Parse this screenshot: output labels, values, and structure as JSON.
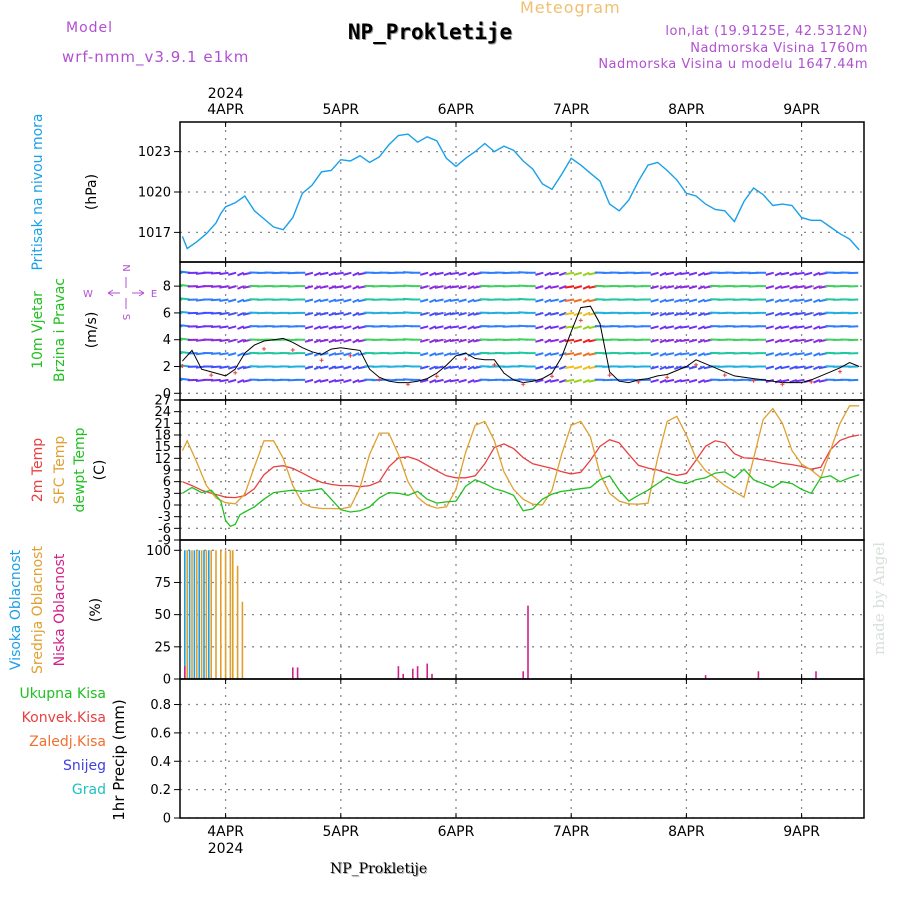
{
  "header": {
    "title": "NP_Prokletije",
    "subtitle": "Meteogram",
    "model_label": "Model",
    "model_name": "wrf-nmm_v3.9.1 e1km",
    "coords": "lon,lat (19.9125E, 42.5312N)",
    "elevation": "Nadmorska Visina 1760m",
    "model_elevation": "Nadmorska Visina u modelu 1647.44m",
    "footer": "NP_Prokletije",
    "credit": "made by Angel"
  },
  "axis_time": {
    "year": "2024",
    "days": [
      "4APR",
      "5APR",
      "6APR",
      "7APR",
      "8APR",
      "9APR"
    ],
    "range_hours": [
      -9.5,
      133
    ]
  },
  "colors": {
    "pressure": "#1aa0e8",
    "t2m": "#e84040",
    "sfc": "#e0a030",
    "dewpt": "#20c020",
    "high_cloud": "#1aa0e8",
    "mid_cloud": "#e0a030",
    "low_cloud": "#d0208a",
    "grid": "#888888"
  },
  "chart_data": [
    {
      "type": "line",
      "name": "pressure",
      "ylabel": "Pritisak na nivou mora",
      "unit": "(hPa)",
      "ylim": [
        1014.8,
        1025.2
      ],
      "yticks": [
        1017,
        1020,
        1023
      ],
      "series": [
        {
          "name": "Pritisak na nivou mora",
          "x": [
            -9,
            -8,
            -6,
            -4,
            -2,
            -1,
            0,
            2,
            4,
            6,
            8,
            10,
            12,
            14,
            16,
            18,
            20,
            22,
            24,
            26,
            28,
            30,
            32,
            34,
            36,
            38,
            40,
            42,
            44,
            46,
            48,
            50,
            52,
            54,
            56,
            58,
            60,
            62,
            64,
            66,
            68,
            70,
            72,
            74,
            76,
            78,
            80,
            82,
            84,
            86,
            88,
            90,
            92,
            94,
            96,
            98,
            100,
            102,
            104,
            106,
            108,
            110,
            112,
            114,
            116,
            118,
            120,
            122,
            124,
            126,
            128,
            130,
            132
          ],
          "y": [
            1016.7,
            1015.8,
            1016.3,
            1016.9,
            1017.7,
            1018.4,
            1018.9,
            1019.2,
            1019.7,
            1018.6,
            1018.0,
            1017.4,
            1017.2,
            1018.1,
            1019.9,
            1020.5,
            1021.5,
            1021.6,
            1022.4,
            1022.3,
            1022.7,
            1022.2,
            1022.6,
            1023.5,
            1024.2,
            1024.3,
            1023.7,
            1024.1,
            1023.8,
            1022.5,
            1021.9,
            1022.5,
            1023.0,
            1023.6,
            1023.0,
            1023.4,
            1023.1,
            1022.3,
            1021.7,
            1020.6,
            1020.2,
            1021.3,
            1022.5,
            1022.0,
            1021.4,
            1020.8,
            1019.1,
            1018.6,
            1019.4,
            1020.8,
            1022.0,
            1022.2,
            1021.6,
            1020.9,
            1019.9,
            1019.7,
            1019.1,
            1018.7,
            1018.6,
            1017.8,
            1019.3,
            1020.3,
            1019.8,
            1019.0,
            1019.1,
            1019.0,
            1018.1,
            1017.9,
            1017.9,
            1017.4,
            1016.9,
            1016.5,
            1015.7
          ]
        }
      ]
    },
    {
      "type": "line",
      "name": "wind",
      "ylabel": "10m Vjetar Brzina i Pravac",
      "unit": "(m/s)",
      "compass": {
        "n": "N",
        "s": "S",
        "e": "E",
        "w": "W"
      },
      "ylim": [
        -0.5,
        9.8
      ],
      "yticks": [
        0,
        2,
        4,
        6,
        8
      ],
      "series": [
        {
          "name": "Brzina",
          "x": [
            -9,
            -7,
            -5,
            -3,
            -1,
            0,
            2,
            4,
            6,
            8,
            10,
            12,
            14,
            16,
            18,
            20,
            22,
            24,
            26,
            28,
            30,
            32,
            34,
            36,
            38,
            40,
            42,
            44,
            46,
            48,
            50,
            52,
            54,
            56,
            58,
            60,
            62,
            64,
            66,
            68,
            70,
            72,
            74,
            76,
            78,
            80,
            82,
            84,
            86,
            88,
            90,
            92,
            94,
            96,
            98,
            100,
            102,
            104,
            106,
            108,
            110,
            112,
            114,
            116,
            118,
            120,
            122,
            124,
            126,
            128,
            130,
            132
          ],
          "y": [
            2.4,
            3.2,
            1.8,
            1.6,
            1.4,
            1.3,
            1.8,
            3.0,
            3.6,
            3.9,
            4.0,
            4.1,
            3.8,
            3.4,
            3.1,
            2.9,
            3.3,
            3.4,
            3.3,
            3.2,
            1.8,
            1.2,
            0.9,
            0.8,
            0.8,
            0.9,
            1.1,
            1.5,
            2.1,
            2.8,
            3.0,
            2.6,
            2.5,
            2.5,
            1.5,
            1.0,
            0.8,
            0.9,
            1.1,
            1.5,
            2.7,
            4.6,
            6.4,
            6.5,
            5.2,
            1.6,
            0.9,
            0.8,
            1.0,
            1.1,
            1.3,
            1.4,
            1.7,
            2.0,
            2.5,
            2.2,
            1.9,
            1.6,
            1.3,
            1.2,
            1.1,
            1.0,
            0.9,
            0.8,
            0.8,
            0.8,
            1.0,
            1.3,
            1.6,
            1.9,
            2.3,
            2.0
          ]
        }
      ]
    },
    {
      "type": "line",
      "name": "temperature",
      "ylabel": [
        "2m Temp",
        "SFC Temp",
        "dewpt Temp"
      ],
      "unit": "(C)",
      "ylim": [
        -9,
        27
      ],
      "yticks": [
        -9,
        -6,
        -3,
        0,
        3,
        6,
        9,
        12,
        15,
        18,
        21,
        24,
        27
      ],
      "series": [
        {
          "name": "2m Temp",
          "x": [
            -9,
            -7,
            -5,
            -3,
            -1,
            0,
            2,
            4,
            6,
            8,
            10,
            12,
            14,
            16,
            18,
            20,
            22,
            24,
            26,
            28,
            30,
            32,
            34,
            36,
            38,
            40,
            42,
            44,
            46,
            48,
            50,
            52,
            54,
            56,
            58,
            60,
            62,
            64,
            66,
            68,
            70,
            72,
            74,
            76,
            78,
            80,
            82,
            84,
            86,
            88,
            90,
            92,
            94,
            96,
            98,
            100,
            102,
            104,
            106,
            108,
            110,
            112,
            114,
            116,
            118,
            120,
            122,
            124,
            126,
            128,
            130,
            132
          ],
          "y": [
            6.0,
            5.0,
            3.8,
            3.0,
            2.4,
            2.0,
            1.9,
            2.4,
            4.2,
            7.8,
            9.8,
            10.1,
            9.4,
            8.2,
            6.9,
            5.8,
            5.3,
            5.0,
            5.0,
            4.7,
            5.0,
            6.0,
            9.8,
            12.1,
            12.4,
            11.6,
            10.2,
            8.8,
            7.5,
            7.0,
            7.0,
            7.5,
            10.6,
            14.8,
            15.7,
            14.5,
            12.2,
            10.6,
            10.0,
            9.4,
            8.6,
            8.0,
            8.4,
            11.5,
            15.1,
            16.8,
            16.0,
            13.0,
            10.2,
            9.5,
            9.0,
            8.2,
            7.6,
            8.1,
            11.5,
            15.1,
            16.5,
            16.0,
            13.2,
            12.1,
            12.0,
            11.6,
            11.2,
            10.7,
            10.4,
            9.9,
            9.2,
            9.7,
            14.2,
            16.6,
            17.5,
            18.0
          ]
        },
        {
          "name": "SFC Temp",
          "x": [
            -9,
            -8,
            -6,
            -4,
            -2,
            0,
            2,
            4,
            6,
            8,
            10,
            12,
            14,
            16,
            18,
            20,
            22,
            24,
            26,
            28,
            30,
            32,
            34,
            36,
            38,
            40,
            42,
            44,
            46,
            48,
            50,
            52,
            54,
            56,
            58,
            60,
            62,
            64,
            66,
            68,
            70,
            72,
            74,
            76,
            78,
            80,
            82,
            84,
            86,
            88,
            90,
            92,
            94,
            96,
            98,
            100,
            102,
            104,
            106,
            108,
            110,
            112,
            114,
            116,
            118,
            120,
            122,
            124,
            126,
            128,
            130,
            132
          ],
          "y": [
            14.0,
            16.5,
            11.0,
            5.0,
            1.8,
            0.6,
            0.3,
            2.8,
            9.8,
            16.5,
            16.5,
            12.0,
            5.0,
            0.5,
            -0.6,
            -0.9,
            -0.9,
            -1.0,
            -0.5,
            4.5,
            13.0,
            18.5,
            18.5,
            13.0,
            6.0,
            2.0,
            0.0,
            -0.8,
            -0.5,
            4.0,
            13.5,
            20.5,
            21.5,
            16.5,
            8.5,
            4.0,
            1.5,
            0.2,
            0.0,
            3.8,
            13.0,
            20.5,
            21.5,
            17.5,
            8.0,
            3.0,
            1.0,
            0.3,
            0.2,
            0.5,
            12.0,
            21.5,
            22.8,
            18.0,
            12.0,
            8.8,
            7.0,
            5.0,
            3.5,
            2.0,
            12.0,
            22.0,
            24.8,
            21.0,
            14.0,
            10.5,
            9.0,
            7.0,
            14.0,
            21.0,
            25.5,
            25.5
          ]
        },
        {
          "name": "dewpt Temp",
          "x": [
            -9,
            -7,
            -5,
            -3,
            -1,
            0,
            1,
            2,
            3,
            4,
            6,
            8,
            10,
            12,
            14,
            16,
            18,
            20,
            22,
            24,
            26,
            28,
            30,
            32,
            34,
            36,
            38,
            40,
            42,
            44,
            46,
            48,
            50,
            52,
            54,
            56,
            58,
            60,
            62,
            64,
            66,
            68,
            70,
            72,
            74,
            76,
            78,
            80,
            82,
            84,
            86,
            88,
            90,
            92,
            94,
            96,
            98,
            100,
            102,
            104,
            106,
            108,
            110,
            112,
            114,
            116,
            118,
            120,
            122,
            124,
            126,
            128,
            130,
            132
          ],
          "y": [
            3.0,
            4.5,
            3.2,
            3.8,
            1.0,
            -4.0,
            -5.5,
            -5.0,
            -2.5,
            -1.8,
            -0.5,
            1.5,
            3.2,
            3.5,
            3.8,
            3.5,
            3.8,
            4.2,
            1.5,
            -1.2,
            -1.8,
            -1.5,
            -0.5,
            1.8,
            3.2,
            3.0,
            2.5,
            3.5,
            1.5,
            0.5,
            0.8,
            1.0,
            4.8,
            6.5,
            5.5,
            4.2,
            3.5,
            2.5,
            -1.5,
            -1.0,
            1.5,
            2.8,
            3.5,
            3.8,
            4.2,
            4.5,
            6.5,
            7.5,
            3.8,
            1.0,
            2.5,
            3.8,
            5.5,
            7.2,
            6.0,
            5.5,
            6.5,
            7.0,
            8.2,
            8.5,
            7.0,
            9.2,
            6.5,
            5.5,
            4.5,
            6.0,
            5.5,
            4.0,
            3.0,
            7.0,
            7.5,
            6.0,
            7.0,
            7.8
          ]
        }
      ]
    },
    {
      "type": "bar",
      "name": "cloud",
      "ylabel": [
        "Visoka Oblacnost",
        "Srednja Oblacnost",
        "Niska Oblacnost"
      ],
      "unit": "(%)",
      "ylim": [
        0,
        108
      ],
      "yticks": [
        0,
        25,
        50,
        75,
        100
      ],
      "series": [
        {
          "name": "Visoka Oblacnost",
          "x": [
            -8.5,
            -7.5,
            -6.5,
            -5.5,
            -4.5,
            -3.5
          ],
          "values": [
            100,
            100,
            100,
            100,
            100,
            100
          ]
        },
        {
          "name": "Srednja Oblacnost",
          "x": [
            -8,
            -7,
            -6,
            -5,
            -4,
            -3,
            -2,
            -1,
            0,
            1,
            1.5,
            2.5,
            3.5
          ],
          "values": [
            100,
            100,
            100,
            100,
            100,
            100,
            100,
            100,
            100,
            100,
            100,
            88,
            60
          ]
        },
        {
          "name": "Niska Oblacnost",
          "x": [
            -8.5,
            14,
            15,
            36,
            37,
            39,
            40,
            42,
            43,
            62,
            63,
            100,
            111,
            123
          ],
          "values": [
            10,
            9,
            9,
            10,
            4,
            8,
            10,
            12,
            4,
            6,
            57,
            3,
            6,
            6
          ]
        }
      ]
    },
    {
      "type": "line",
      "name": "precipitation",
      "ylabel": "1hr Precip",
      "unit": "(mm)",
      "ylim": [
        0,
        0.98
      ],
      "yticks": [
        0,
        0.2,
        0.4,
        0.6,
        0.8
      ],
      "legend": [
        "Ukupna Kisa",
        "Konvek.Kisa",
        "Zaledj.Kisa",
        "Snijeg",
        "Grad"
      ],
      "legend_colors": [
        "#20c020",
        "#e84040",
        "#f07030",
        "#4040e0",
        "#20c0c0"
      ],
      "series": []
    }
  ]
}
